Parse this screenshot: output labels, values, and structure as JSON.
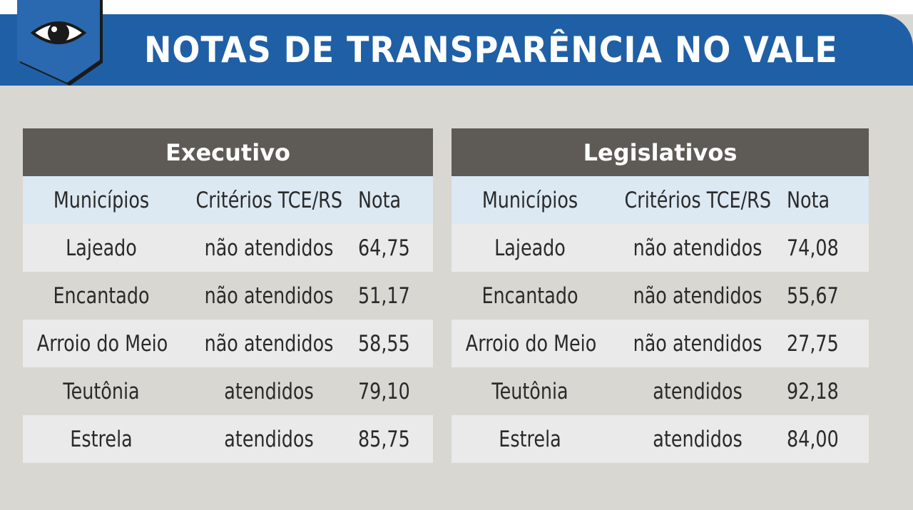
{
  "header": {
    "title": "NOTAS DE TRANSPARÊNCIA NO VALE",
    "icon": "eye-icon",
    "colors": {
      "banner": "#1f5fa6",
      "badge": "#1f5fa6"
    }
  },
  "tables": [
    {
      "title": "Executivo",
      "columns": [
        "Municípios",
        "Critérios TCE/RS",
        "Nota"
      ],
      "rows": [
        [
          "Lajeado",
          "não atendidos",
          "64,75"
        ],
        [
          "Encantado",
          "não atendidos",
          "51,17"
        ],
        [
          "Arroio do Meio",
          "não atendidos",
          "58,55"
        ],
        [
          "Teutônia",
          "atendidos",
          "79,10"
        ],
        [
          "Estrela",
          "atendidos",
          "85,75"
        ]
      ]
    },
    {
      "title": "Legislativos",
      "columns": [
        "Municípios",
        "Critérios TCE/RS",
        "Nota"
      ],
      "rows": [
        [
          "Lajeado",
          "não atendidos",
          "74,08"
        ],
        [
          "Encantado",
          "não atendidos",
          "55,67"
        ],
        [
          "Arroio do Meio",
          "não atendidos",
          "27,75"
        ],
        [
          "Teutônia",
          "atendidos",
          "92,18"
        ],
        [
          "Estrela",
          "atendidos",
          "84,00"
        ]
      ]
    }
  ]
}
